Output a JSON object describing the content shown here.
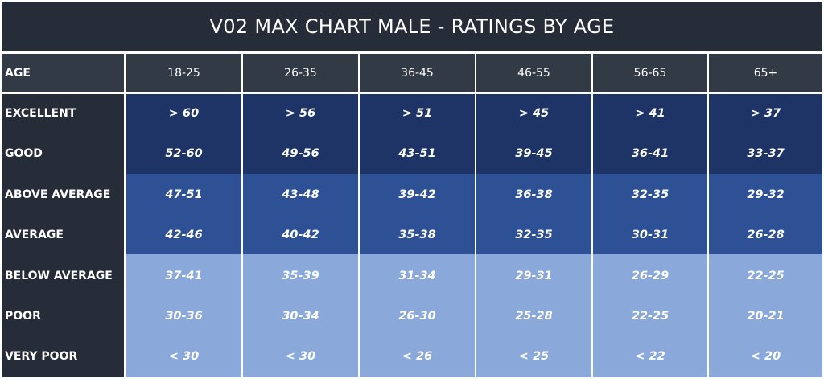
{
  "chart_data": {
    "type": "table",
    "title": "V02 MAX CHART MALE - RATINGS BY AGE",
    "columns": [
      "AGE",
      "18-25",
      "26-35",
      "36-45",
      "46-55",
      "56-65",
      "65+"
    ],
    "rows": [
      {
        "label": "EXCELLENT",
        "values": [
          "> 60",
          "> 56",
          "> 51",
          "> 45",
          "> 41",
          "> 37"
        ]
      },
      {
        "label": "GOOD",
        "values": [
          "52-60",
          "49-56",
          "43-51",
          "39-45",
          "36-41",
          "33-37"
        ]
      },
      {
        "label": "ABOVE AVERAGE",
        "values": [
          "47-51",
          "43-48",
          "39-42",
          "36-38",
          "32-35",
          "29-32"
        ]
      },
      {
        "label": "AVERAGE",
        "values": [
          "42-46",
          "40-42",
          "35-38",
          "32-35",
          "30-31",
          "26-28"
        ]
      },
      {
        "label": "BELOW AVERAGE",
        "values": [
          "37-41",
          "35-39",
          "31-34",
          "29-31",
          "26-29",
          "22-25"
        ]
      },
      {
        "label": "POOR",
        "values": [
          "30-36",
          "30-34",
          "26-30",
          "25-28",
          "22-25",
          "20-21"
        ]
      },
      {
        "label": "VERY POOR",
        "values": [
          "< 30",
          "< 30",
          "< 26",
          "< 25",
          "< 22",
          "< 20"
        ]
      }
    ]
  },
  "colors": {
    "title_bg": "#262d38",
    "header_bg": "#323a46",
    "label_bg": "#262d38",
    "band_dark": "#1e3366",
    "band_mid": "#2e5196",
    "band_light": "#8aa8da",
    "text": "#ffffff"
  }
}
